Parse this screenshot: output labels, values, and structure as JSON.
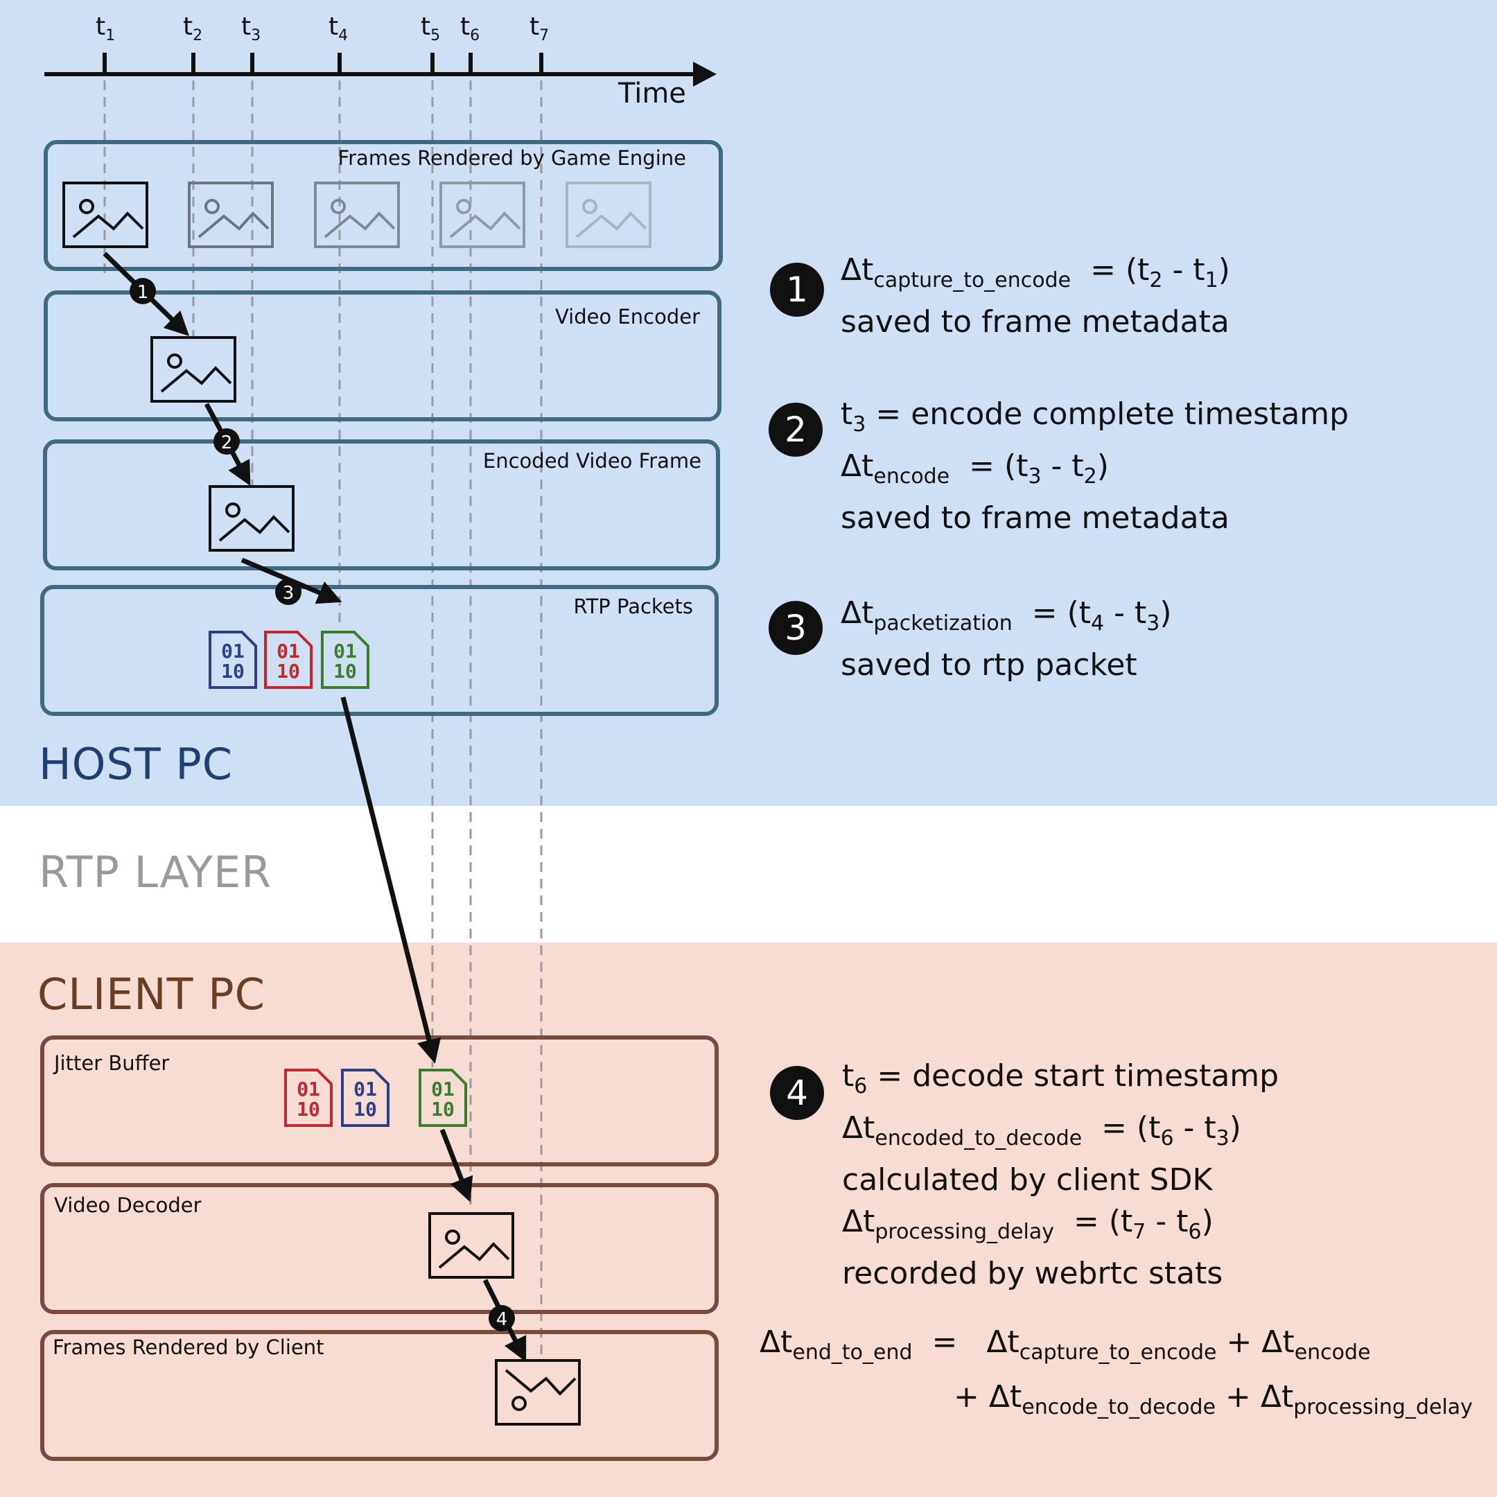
{
  "regions": {
    "host": "HOST PC",
    "rtp": "RTP LAYER",
    "client": "CLIENT PC"
  },
  "timeline": {
    "axis_label": "Time",
    "ticks": [
      {
        "t": "t",
        "sub": "1"
      },
      {
        "t": "t",
        "sub": "2"
      },
      {
        "t": "t",
        "sub": "3"
      },
      {
        "t": "t",
        "sub": "4"
      },
      {
        "t": "t",
        "sub": "5"
      },
      {
        "t": "t",
        "sub": "6"
      },
      {
        "t": "t",
        "sub": "7"
      }
    ]
  },
  "boxes": {
    "frames_rendered_engine": "Frames Rendered by Game Engine",
    "video_encoder": "Video Encoder",
    "encoded_video_frame": "Encoded Video Frame",
    "rtp_packets": "RTP Packets",
    "jitter_buffer": "Jitter Buffer",
    "video_decoder": "Video Decoder",
    "frames_rendered_client": "Frames Rendered by Client"
  },
  "packet_bits": {
    "top": "01",
    "bottom": "10"
  },
  "step_badges": [
    "1",
    "2",
    "3",
    "4"
  ],
  "notes": {
    "n1": {
      "badge": "1",
      "l1_delta": "Δt",
      "l1_sub": "capture_to_encode",
      "l1_eq": "= (t",
      "l1_a": "2",
      "l1_mid": " - t",
      "l1_b": "1",
      "l1_end": ")",
      "l2": "saved to frame metadata"
    },
    "n2": {
      "badge": "2",
      "l1_t": "t",
      "l1_sub": "3",
      "l1_rest": " = encode complete timestamp",
      "l2_delta": "Δt",
      "l2_sub": "encode",
      "l2_eq": "= (t",
      "l2_a": "3",
      "l2_mid": " - t",
      "l2_b": "2",
      "l2_end": ")",
      "l3": "saved to frame metadata"
    },
    "n3": {
      "badge": "3",
      "l1_delta": "Δt",
      "l1_sub": "packetization",
      "l1_eq": "= (t",
      "l1_a": "4",
      "l1_mid": " - t",
      "l1_b": "3",
      "l1_end": ")",
      "l2": "saved to rtp packet"
    },
    "n4": {
      "badge": "4",
      "l1_t": "t",
      "l1_sub": "6",
      "l1_rest": " = decode start timestamp",
      "l2_delta": "Δt",
      "l2_sub": "encoded_to_decode",
      "l2_eq": "= (t",
      "l2_a": "6",
      "l2_mid": " - t",
      "l2_b": "3",
      "l2_end": ")",
      "l3": "calculated by client SDK",
      "l4_delta": "Δt",
      "l4_sub": "processing_delay",
      "l4_eq": "= (t",
      "l4_a": "7",
      "l4_mid": " - t",
      "l4_b": "6",
      "l4_end": ")",
      "l5": "recorded by webrtc stats"
    }
  },
  "formula": {
    "lhs_delta": "Δt",
    "lhs_sub": "end_to_end",
    "eq": "=",
    "t1_delta": "Δt",
    "t1_sub": "capture_to_encode",
    "plus1": "+",
    "t2_delta": "Δt",
    "t2_sub": "encode",
    "plus2": "+",
    "t3_delta": "Δt",
    "t3_sub": "encode_to_decode",
    "plus3": "+",
    "t4_delta": "Δt",
    "t4_sub": "processing_delay"
  },
  "colors": {
    "host_bg": "#cfe0f5",
    "client_bg": "#f7dcd3",
    "host_box_border": "#3f6a80",
    "client_box_border": "#7a4a3a",
    "host_label": "#1f3f6e",
    "rtp_label": "#9a9a9a",
    "client_label": "#6b3e22",
    "packet_blue": "#2f3f86",
    "packet_red": "#c1272d",
    "packet_green": "#3a7d2c"
  },
  "icons": {
    "frame": "image-frame-icon",
    "packet": "binary-packet-icon",
    "arrow": "arrow-icon"
  }
}
